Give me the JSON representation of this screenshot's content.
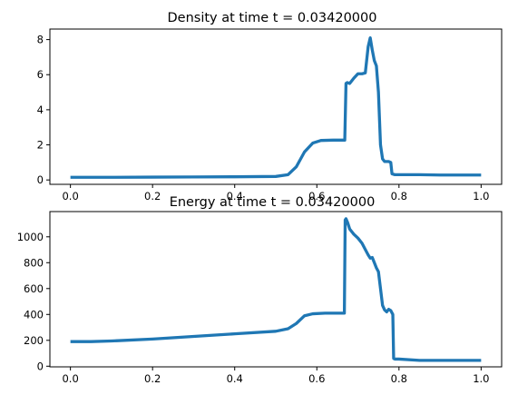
{
  "colors": {
    "line": "#1f77b4",
    "axes": "#000000",
    "background": "#ffffff"
  },
  "chart_data": [
    {
      "type": "line",
      "title": "Density at time t =      0.03420000",
      "xlabel": "",
      "ylabel": "",
      "xlim": [
        -0.05,
        1.05
      ],
      "ylim": [
        -0.25,
        8.6
      ],
      "xticks": [
        0.0,
        0.2,
        0.4,
        0.6,
        0.8,
        1.0
      ],
      "xtick_labels": [
        "0.0",
        "0.2",
        "0.4",
        "0.6",
        "0.8",
        "1.0"
      ],
      "yticks": [
        0,
        2,
        4,
        6,
        8
      ],
      "ytick_labels": [
        "0",
        "2",
        "4",
        "6",
        "8"
      ],
      "grid": false,
      "series": [
        {
          "x": [
            0.0,
            0.1,
            0.2,
            0.3,
            0.4,
            0.5,
            0.53,
            0.55,
            0.57,
            0.59,
            0.61,
            0.64,
            0.668,
            0.671,
            0.674,
            0.68,
            0.69,
            0.7,
            0.71,
            0.718,
            0.725,
            0.73,
            0.735,
            0.74,
            0.745,
            0.75,
            0.755,
            0.76,
            0.765,
            0.775,
            0.78,
            0.783,
            0.79,
            0.85,
            0.9,
            1.0
          ],
          "y": [
            0.15,
            0.15,
            0.16,
            0.17,
            0.18,
            0.2,
            0.3,
            0.75,
            1.6,
            2.1,
            2.25,
            2.27,
            2.27,
            5.5,
            5.55,
            5.5,
            5.8,
            6.05,
            6.05,
            6.1,
            7.6,
            8.1,
            7.4,
            6.8,
            6.5,
            5.0,
            2.0,
            1.2,
            1.05,
            1.05,
            1.0,
            0.35,
            0.3,
            0.3,
            0.28,
            0.28
          ]
        }
      ]
    },
    {
      "type": "line",
      "title": "Energy at time t =      0.03420000",
      "xlabel": "",
      "ylabel": "",
      "xlim": [
        -0.05,
        1.05
      ],
      "ylim": [
        -5,
        1195
      ],
      "xticks": [
        0.0,
        0.2,
        0.4,
        0.6,
        0.8,
        1.0
      ],
      "xtick_labels": [
        "0.0",
        "0.2",
        "0.4",
        "0.6",
        "0.8",
        "1.0"
      ],
      "yticks": [
        0,
        200,
        400,
        600,
        800,
        1000
      ],
      "ytick_labels": [
        "0",
        "200",
        "400",
        "600",
        "800",
        "1000"
      ],
      "grid": false,
      "series": [
        {
          "x": [
            0.0,
            0.05,
            0.1,
            0.2,
            0.3,
            0.4,
            0.5,
            0.53,
            0.55,
            0.57,
            0.59,
            0.62,
            0.667,
            0.669,
            0.671,
            0.675,
            0.68,
            0.69,
            0.7,
            0.71,
            0.72,
            0.725,
            0.73,
            0.735,
            0.74,
            0.745,
            0.75,
            0.755,
            0.76,
            0.765,
            0.77,
            0.775,
            0.78,
            0.785,
            0.787,
            0.79,
            0.8,
            0.85,
            0.9,
            1.0
          ],
          "y": [
            190,
            190,
            195,
            210,
            230,
            250,
            270,
            290,
            330,
            390,
            405,
            410,
            410,
            1130,
            1140,
            1110,
            1060,
            1020,
            990,
            950,
            890,
            860,
            835,
            840,
            800,
            760,
            730,
            600,
            470,
            435,
            420,
            440,
            430,
            400,
            60,
            55,
            55,
            45,
            45,
            45
          ]
        }
      ]
    }
  ]
}
